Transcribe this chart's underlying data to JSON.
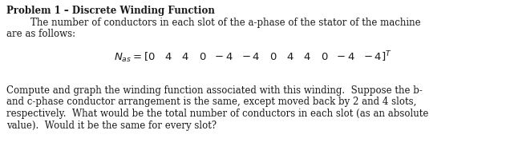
{
  "title": "Problem 1 – Discrete Winding Function",
  "line1": "        The number of conductors in each slot of the a-phase of the stator of the machine",
  "line2": "are as follows:",
  "body_line1": "Compute and graph the winding function associated with this winding.  Suppose the b-",
  "body_line2": "and c-phase conductor arrangement is the same, except moved back by 2 and 4 slots,",
  "body_line3": "respectively.  What would be the total number of conductors in each slot (as an absolute",
  "body_line4": "value).  Would it be the same for every slot?",
  "bg_color": "#ffffff",
  "text_color": "#1a1a1a",
  "title_fontsize": 8.5,
  "body_fontsize": 8.5,
  "eq_fontsize": 9.5,
  "eq_sub_fontsize": 7.0,
  "eq_sup_fontsize": 6.5
}
